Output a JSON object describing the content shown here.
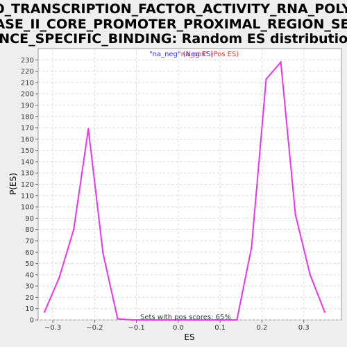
{
  "chart_data": {
    "type": "line",
    "title_lines": [
      "GO_TRANSCRIPTION_FACTOR_ACTIVITY_RNA_POLYM",
      "ERASE_II_CORE_PROMOTER_PROXIMAL_REGION_SEQU",
      "ENCE_SPECIFIC_BINDING: Random ES distribution"
    ],
    "xlabel": "ES",
    "ylabel": "P(ES)",
    "xlim": [
      -0.335,
      0.39
    ],
    "ylim": [
      0,
      240
    ],
    "x_ticks": [
      -0.3,
      -0.2,
      -0.1,
      0.0,
      0.1,
      0.2,
      0.3
    ],
    "x_tick_labels": [
      "−0.3",
      "−0.2",
      "−0.1",
      "0.0",
      "0.1",
      "0.2",
      "0.3"
    ],
    "y_ticks": [
      0,
      10,
      20,
      30,
      40,
      50,
      60,
      70,
      80,
      90,
      100,
      110,
      120,
      130,
      140,
      150,
      160,
      170,
      180,
      190,
      200,
      210,
      220,
      230
    ],
    "y_tick_labels": [
      "0",
      "10",
      "20",
      "30",
      "40",
      "50",
      "60",
      "70",
      "80",
      "90",
      "100",
      "110",
      "120",
      "130",
      "140",
      "150",
      "160",
      "170",
      "180",
      "190",
      "200",
      "210",
      "220",
      "230"
    ],
    "grid": true,
    "legend": {
      "placement": "top-center",
      "entries": [
        {
          "text": "\"na_neg\" (Neg ES)",
          "color": "#3333ff"
        },
        {
          "text": "\"na_pos\" (Pos ES)",
          "color": "#ee3333"
        }
      ]
    },
    "annotation": "Sets with pos scores: 65%",
    "series": [
      {
        "color": "#ee33ee",
        "x": [
          -0.32,
          -0.285,
          -0.25,
          -0.215,
          -0.18,
          -0.145,
          -0.11,
          -0.075,
          -0.04,
          0.0,
          0.04,
          0.07,
          0.105,
          0.14,
          0.175,
          0.21,
          0.245,
          0.28,
          0.315,
          0.35
        ],
        "y": [
          7,
          37,
          80,
          169,
          59,
          1,
          0,
          0,
          0,
          0,
          0,
          0,
          0,
          0,
          64,
          213,
          228,
          93,
          40,
          7
        ]
      }
    ]
  }
}
